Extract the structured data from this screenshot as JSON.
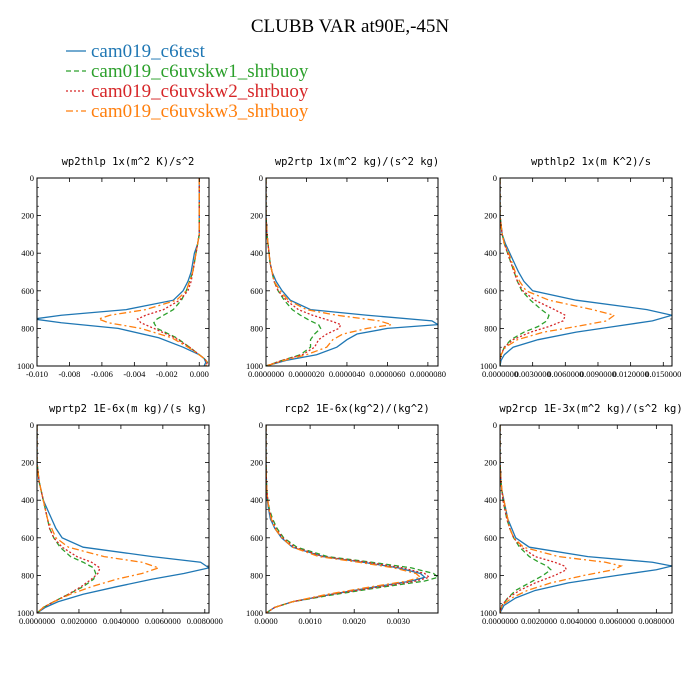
{
  "figure": {
    "title": "CLUBB VAR at90E,-45N"
  },
  "legend": [
    {
      "label": "cam019_c6test",
      "color": "#1f77b4",
      "dash": "solid"
    },
    {
      "label": "cam019_c6uvskw1_shrbuoy",
      "color": "#2ca02c",
      "dash": "dashed"
    },
    {
      "label": "cam019_c6uvskw2_shrbuoy",
      "color": "#d62728",
      "dash": "dotted"
    },
    {
      "label": "cam019_c6uvskw3_shrbuoy",
      "color": "#ff7f0e",
      "dash": "dashdot"
    }
  ],
  "chart_data": [
    {
      "type": "line",
      "title": "wp2thlp  1x(m^2 K)/s^2",
      "xlim": [
        -0.01,
        0.0006
      ],
      "xticks": [
        "-0.010",
        "-0.008",
        "-0.006",
        "-0.004",
        "-0.002",
        "0.000"
      ],
      "xtick_values": [
        -0.01,
        -0.008,
        -0.006,
        -0.004,
        -0.002,
        0.0
      ],
      "ylim": [
        0,
        1000
      ],
      "yticks": [
        "0",
        "200",
        "400",
        "600",
        "800",
        "1000"
      ],
      "y_inverted": true,
      "y": [
        0,
        200,
        300,
        350,
        400,
        450,
        500,
        550,
        600,
        650,
        700,
        730,
        750,
        770,
        800,
        850,
        900,
        940,
        960,
        980,
        1000
      ],
      "series": [
        {
          "name": "cam019_c6test",
          "x": [
            0.0,
            0.0,
            0.0,
            -0.0001,
            -0.0003,
            -0.0004,
            -0.0005,
            -0.0007,
            -0.001,
            -0.0016,
            -0.0045,
            -0.0085,
            -0.0102,
            -0.0085,
            -0.005,
            -0.0025,
            -0.001,
            0.0,
            0.0003,
            0.0004,
            0.0003
          ]
        },
        {
          "name": "cam019_c6uvskw1_shrbuoy",
          "x": [
            0.0,
            0.0,
            0.0,
            -0.0001,
            -0.0002,
            -0.0003,
            -0.0004,
            -0.0006,
            -0.0008,
            -0.0011,
            -0.0016,
            -0.0022,
            -0.0026,
            -0.0028,
            -0.0026,
            -0.0014,
            -0.0006,
            0.0,
            0.0003,
            0.0005,
            0.0004
          ]
        },
        {
          "name": "cam019_c6uvskw2_shrbuoy",
          "x": [
            0.0,
            0.0,
            0.0,
            -0.0001,
            -0.0002,
            -0.0003,
            -0.0004,
            -0.0005,
            -0.0007,
            -0.0012,
            -0.0022,
            -0.0033,
            -0.0038,
            -0.0036,
            -0.0028,
            -0.0015,
            -0.0006,
            0.0,
            0.0003,
            0.0005,
            0.0004
          ]
        },
        {
          "name": "cam019_c6uvskw3_shrbuoy",
          "x": [
            0.0,
            0.0,
            0.0,
            -0.0001,
            -0.0002,
            -0.0003,
            -0.0004,
            -0.0006,
            -0.0008,
            -0.0014,
            -0.0033,
            -0.0055,
            -0.0062,
            -0.0056,
            -0.0036,
            -0.0017,
            -0.0007,
            0.0,
            0.0003,
            0.0005,
            0.0004
          ]
        }
      ]
    },
    {
      "type": "line",
      "title": "wp2rtp  1x(m^2 kg)/(s^2 kg)",
      "xlim": [
        0,
        8.5e-06
      ],
      "xticks": [
        "0.0000000",
        "0.0000020",
        "0.0000040",
        "0.0000060",
        "0.0000080"
      ],
      "xtick_values": [
        0,
        2e-06,
        4e-06,
        6e-06,
        8e-06
      ],
      "ylim": [
        0,
        1000
      ],
      "yticks": [
        "0",
        "200",
        "400",
        "600",
        "800",
        "1000"
      ],
      "y_inverted": true,
      "y": [
        0,
        200,
        300,
        350,
        400,
        450,
        500,
        550,
        600,
        650,
        700,
        730,
        760,
        780,
        800,
        830,
        860,
        900,
        940,
        970,
        1000
      ],
      "series": [
        {
          "name": "cam019_c6test",
          "x": [
            0.0,
            0.0,
            5e-08,
            1e-07,
            1.5e-07,
            2e-07,
            3e-07,
            5e-07,
            8e-07,
            1.2e-06,
            2.2e-06,
            5e-06,
            8.2e-06,
            8.5e-06,
            6e-06,
            4.5e-06,
            4e-06,
            3.5e-06,
            2.5e-06,
            1e-06,
            0.0
          ]
        },
        {
          "name": "cam019_c6uvskw1_shrbuoy",
          "x": [
            0.0,
            0.0,
            5e-08,
            1e-07,
            1.5e-07,
            2e-07,
            3e-07,
            4e-07,
            6e-07,
            9e-07,
            1.3e-06,
            1.7e-06,
            2.2e-06,
            2.6e-06,
            2.7e-06,
            2.4e-06,
            2.2e-06,
            2.2e-06,
            1.7e-06,
            8e-07,
            0.0
          ]
        },
        {
          "name": "cam019_c6uvskw2_shrbuoy",
          "x": [
            0.0,
            0.0,
            5e-08,
            1e-07,
            1.5e-07,
            2e-07,
            3e-07,
            4e-07,
            6e-07,
            1e-06,
            1.6e-06,
            2.3e-06,
            3.2e-06,
            3.7e-06,
            3.6e-06,
            3e-06,
            2.6e-06,
            2.4e-06,
            1.8e-06,
            8e-07,
            0.0
          ]
        },
        {
          "name": "cam019_c6uvskw3_shrbuoy",
          "x": [
            0.0,
            0.0,
            5e-08,
            1e-07,
            1.5e-07,
            2e-07,
            3e-07,
            4e-07,
            7e-07,
            1.1e-06,
            2e-06,
            3.5e-06,
            5.6e-06,
            6.2e-06,
            5e-06,
            3.8e-06,
            3.3e-06,
            3e-06,
            2e-06,
            9e-07,
            0.0
          ]
        }
      ]
    },
    {
      "type": "line",
      "title": "wpthlp2  1x(m K^2)/s",
      "xlim": [
        0,
        0.0158
      ],
      "xticks": [
        "0.0000000",
        "0.0030000",
        "0.0060000",
        "0.0090000",
        "0.0120000",
        "0.0150000"
      ],
      "xtick_values": [
        0,
        0.003,
        0.006,
        0.009,
        0.012,
        0.015
      ],
      "ylim": [
        0,
        1000
      ],
      "yticks": [
        "0",
        "200",
        "400",
        "600",
        "800",
        "1000"
      ],
      "y_inverted": true,
      "y": [
        0,
        200,
        300,
        350,
        400,
        450,
        500,
        550,
        600,
        650,
        700,
        730,
        760,
        790,
        820,
        860,
        900,
        940,
        970,
        1000
      ],
      "series": [
        {
          "name": "cam019_c6test",
          "x": [
            0.0,
            0.0,
            0.0002,
            0.0005,
            0.0009,
            0.0013,
            0.0017,
            0.0022,
            0.003,
            0.007,
            0.0135,
            0.0158,
            0.014,
            0.0105,
            0.007,
            0.0035,
            0.0012,
            0.0004,
            0.0001,
            0.0
          ]
        },
        {
          "name": "cam019_c6uvskw1_shrbuoy",
          "x": [
            0.0,
            0.0,
            0.0002,
            0.0004,
            0.0007,
            0.001,
            0.0013,
            0.0016,
            0.002,
            0.0028,
            0.0038,
            0.0045,
            0.0043,
            0.0035,
            0.0022,
            0.001,
            0.0004,
            0.0001,
            0.0,
            0.0
          ]
        },
        {
          "name": "cam019_c6uvskw2_shrbuoy",
          "x": [
            0.0,
            0.0,
            0.0002,
            0.0004,
            0.0007,
            0.001,
            0.0013,
            0.0016,
            0.0021,
            0.0032,
            0.005,
            0.006,
            0.0058,
            0.0045,
            0.0028,
            0.0012,
            0.0004,
            0.0001,
            0.0,
            0.0
          ]
        },
        {
          "name": "cam019_c6uvskw3_shrbuoy",
          "x": [
            0.0,
            0.0,
            0.0002,
            0.0004,
            0.0008,
            0.0011,
            0.0014,
            0.0018,
            0.0024,
            0.0045,
            0.0085,
            0.0105,
            0.0098,
            0.007,
            0.004,
            0.0016,
            0.0005,
            0.0001,
            0.0,
            0.0
          ]
        }
      ]
    },
    {
      "type": "line",
      "title": "wprtp2  1E-6x(m kg)/(s kg)",
      "xlim": [
        0,
        0.0082
      ],
      "xticks": [
        "0.0000000",
        "0.0020000",
        "0.0040000",
        "0.0060000",
        "0.0080000"
      ],
      "xtick_values": [
        0,
        0.002,
        0.004,
        0.006,
        0.008
      ],
      "ylim": [
        0,
        1000
      ],
      "yticks": [
        "0",
        "200",
        "400",
        "600",
        "800",
        "1000"
      ],
      "y_inverted": true,
      "y": [
        0,
        200,
        300,
        350,
        400,
        450,
        500,
        550,
        600,
        650,
        700,
        730,
        760,
        790,
        820,
        860,
        900,
        940,
        970,
        1000
      ],
      "series": [
        {
          "name": "cam019_c6test",
          "x": [
            0.0,
            0.0,
            0.0001,
            0.0002,
            0.0003,
            0.0005,
            0.0007,
            0.0009,
            0.0012,
            0.0022,
            0.0055,
            0.0078,
            0.0082,
            0.007,
            0.0055,
            0.0038,
            0.0022,
            0.001,
            0.0004,
            0.0
          ]
        },
        {
          "name": "cam019_c6uvskw1_shrbuoy",
          "x": [
            0.0,
            0.0,
            0.0001,
            0.0002,
            0.0003,
            0.0004,
            0.0005,
            0.0006,
            0.0008,
            0.0011,
            0.0016,
            0.0022,
            0.0027,
            0.0028,
            0.0027,
            0.0022,
            0.0015,
            0.0008,
            0.0003,
            0.0
          ]
        },
        {
          "name": "cam019_c6uvskw2_shrbuoy",
          "x": [
            0.0,
            0.0,
            0.0001,
            0.0002,
            0.0003,
            0.0004,
            0.0005,
            0.0006,
            0.0008,
            0.0012,
            0.0019,
            0.0026,
            0.003,
            0.0029,
            0.0026,
            0.0021,
            0.0015,
            0.0008,
            0.0003,
            0.0
          ]
        },
        {
          "name": "cam019_c6uvskw3_shrbuoy",
          "x": [
            0.0,
            0.0,
            0.0001,
            0.0002,
            0.0003,
            0.0004,
            0.0005,
            0.0007,
            0.0009,
            0.0015,
            0.0032,
            0.005,
            0.0058,
            0.005,
            0.0038,
            0.0026,
            0.0016,
            0.0008,
            0.0003,
            0.0
          ]
        }
      ]
    },
    {
      "type": "line",
      "title": "rcp2  1E-6x(kg^2)/(kg^2)",
      "xlim": [
        0,
        0.0039
      ],
      "xticks": [
        "0.0000",
        "0.0010",
        "0.0020",
        "0.0030"
      ],
      "xtick_values": [
        0,
        0.001,
        0.002,
        0.003
      ],
      "ylim": [
        0,
        1000
      ],
      "yticks": [
        "0",
        "200",
        "400",
        "600",
        "800",
        "1000"
      ],
      "y_inverted": true,
      "y": [
        0,
        200,
        300,
        350,
        400,
        450,
        500,
        550,
        600,
        650,
        700,
        730,
        760,
        790,
        810,
        830,
        860,
        900,
        940,
        970,
        1000
      ],
      "series": [
        {
          "name": "cam019_c6test",
          "x": [
            0.0,
            0.0,
            1e-05,
            2e-05,
            3e-05,
            6e-05,
            0.0001,
            0.0002,
            0.00035,
            0.0006,
            0.0013,
            0.0022,
            0.003,
            0.0035,
            0.0036,
            0.0033,
            0.0025,
            0.0015,
            0.0006,
            0.0002,
            0.0
          ]
        },
        {
          "name": "cam019_c6uvskw1_shrbuoy",
          "x": [
            0.0,
            0.0,
            1e-05,
            2e-05,
            4e-05,
            8e-05,
            0.00015,
            0.00025,
            0.0004,
            0.0007,
            0.0014,
            0.0024,
            0.0033,
            0.0038,
            0.0039,
            0.0036,
            0.0027,
            0.0016,
            0.0006,
            0.0002,
            0.0
          ]
        },
        {
          "name": "cam019_c6uvskw2_shrbuoy",
          "x": [
            0.0,
            0.0,
            1e-05,
            2e-05,
            4e-05,
            7e-05,
            0.00013,
            0.00022,
            0.00038,
            0.00065,
            0.0013,
            0.0023,
            0.0031,
            0.0036,
            0.0037,
            0.0034,
            0.0026,
            0.0015,
            0.0006,
            0.0002,
            0.0
          ]
        },
        {
          "name": "cam019_c6uvskw3_shrbuoy",
          "x": [
            0.0,
            0.0,
            1e-05,
            2e-05,
            4e-05,
            7e-05,
            0.00012,
            0.0002,
            0.00036,
            0.0006,
            0.0012,
            0.0021,
            0.0029,
            0.0034,
            0.0035,
            0.0032,
            0.0024,
            0.0014,
            0.0006,
            0.0002,
            0.0
          ]
        }
      ]
    },
    {
      "type": "line",
      "title": "wp2rcp  1E-3x(m^2 kg)/(s^2 kg)",
      "xlim": [
        0,
        0.0088
      ],
      "xticks": [
        "0.0000000",
        "0.0020000",
        "0.0040000",
        "0.0060000",
        "0.0080000"
      ],
      "xtick_values": [
        0,
        0.002,
        0.004,
        0.006,
        0.008
      ],
      "ylim": [
        0,
        1000
      ],
      "yticks": [
        "0",
        "200",
        "400",
        "600",
        "800",
        "1000"
      ],
      "y_inverted": true,
      "y": [
        0,
        200,
        300,
        350,
        400,
        450,
        500,
        550,
        600,
        650,
        700,
        730,
        750,
        770,
        800,
        840,
        880,
        920,
        960,
        1000
      ],
      "series": [
        {
          "name": "cam019_c6test",
          "x": [
            0.0,
            0.0,
            5e-05,
            0.0001,
            0.0002,
            0.0003,
            0.0004,
            0.0006,
            0.0008,
            0.0015,
            0.0045,
            0.0078,
            0.0088,
            0.008,
            0.006,
            0.0035,
            0.0018,
            0.0008,
            0.0002,
            0.0
          ]
        },
        {
          "name": "cam019_c6uvskw1_shrbuoy",
          "x": [
            0.0,
            0.0,
            5e-05,
            0.0001,
            0.00015,
            0.00025,
            0.00035,
            0.0005,
            0.0007,
            0.001,
            0.0015,
            0.002,
            0.0024,
            0.0026,
            0.0022,
            0.0015,
            0.0008,
            0.0004,
            0.0001,
            0.0
          ]
        },
        {
          "name": "cam019_c6uvskw2_shrbuoy",
          "x": [
            0.0,
            0.0,
            5e-05,
            0.0001,
            0.00015,
            0.00025,
            0.00035,
            0.0005,
            0.0007,
            0.0011,
            0.0018,
            0.0028,
            0.0033,
            0.0034,
            0.0028,
            0.0018,
            0.001,
            0.0004,
            0.0001,
            0.0
          ]
        },
        {
          "name": "cam019_c6uvskw3_shrbuoy",
          "x": [
            0.0,
            0.0,
            5e-05,
            0.0001,
            0.0002,
            0.0003,
            0.0004,
            0.0005,
            0.0007,
            0.0012,
            0.003,
            0.0054,
            0.0062,
            0.0058,
            0.0043,
            0.0026,
            0.0014,
            0.0006,
            0.0001,
            0.0
          ]
        }
      ]
    }
  ]
}
